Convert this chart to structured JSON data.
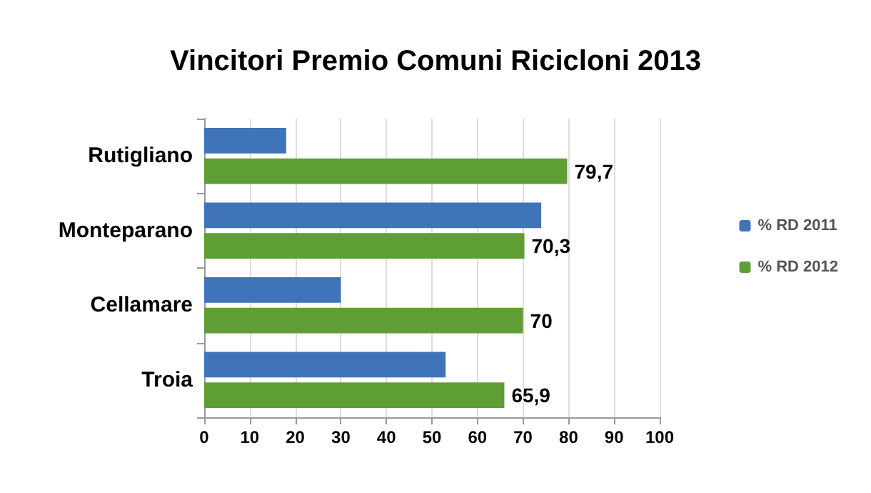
{
  "chart_data": {
    "type": "bar",
    "orientation": "horizontal",
    "title": "Vincitori Premio Comuni Ricicloni 2013",
    "categories": [
      "Rutigliano",
      "Monteparano",
      "Cellamare",
      "Troia"
    ],
    "series": [
      {
        "name": "% RD 2011",
        "color": "#3f74b8",
        "values": [
          18,
          74,
          30,
          53
        ]
      },
      {
        "name": "% RD 2012",
        "color": "#5f9e35",
        "values": [
          79.7,
          70.3,
          70,
          65.9
        ],
        "value_labels": [
          "79,7",
          "70,3",
          "70",
          "65,9"
        ]
      }
    ],
    "xlim": [
      0,
      100
    ],
    "xticks": [
      0,
      10,
      20,
      30,
      40,
      50,
      60,
      70,
      80,
      90,
      100
    ],
    "grid": "x",
    "legend": "right"
  }
}
